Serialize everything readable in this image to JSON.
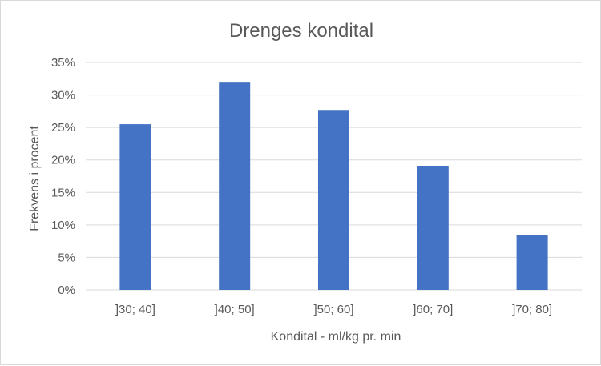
{
  "chart_data": {
    "type": "bar",
    "title": "Drenges kondital",
    "xlabel": "Kondital - ml/kg pr. min",
    "ylabel": "Frekvens i procent",
    "categories": [
      "]30; 40]",
      "]40; 50]",
      "]50; 60]",
      "]60; 70]",
      "]70; 80]"
    ],
    "values": [
      25.5,
      31.9,
      27.7,
      19.1,
      8.5
    ],
    "ylim": [
      0,
      35
    ],
    "yticks": [
      0,
      5,
      10,
      15,
      20,
      25,
      30,
      35
    ],
    "ytick_labels": [
      "0%",
      "5%",
      "10%",
      "15%",
      "20%",
      "25%",
      "30%",
      "35%"
    ],
    "grid": true,
    "legend": "none",
    "bar_color": "#4472C4",
    "grid_color": "#d9d9d9"
  }
}
